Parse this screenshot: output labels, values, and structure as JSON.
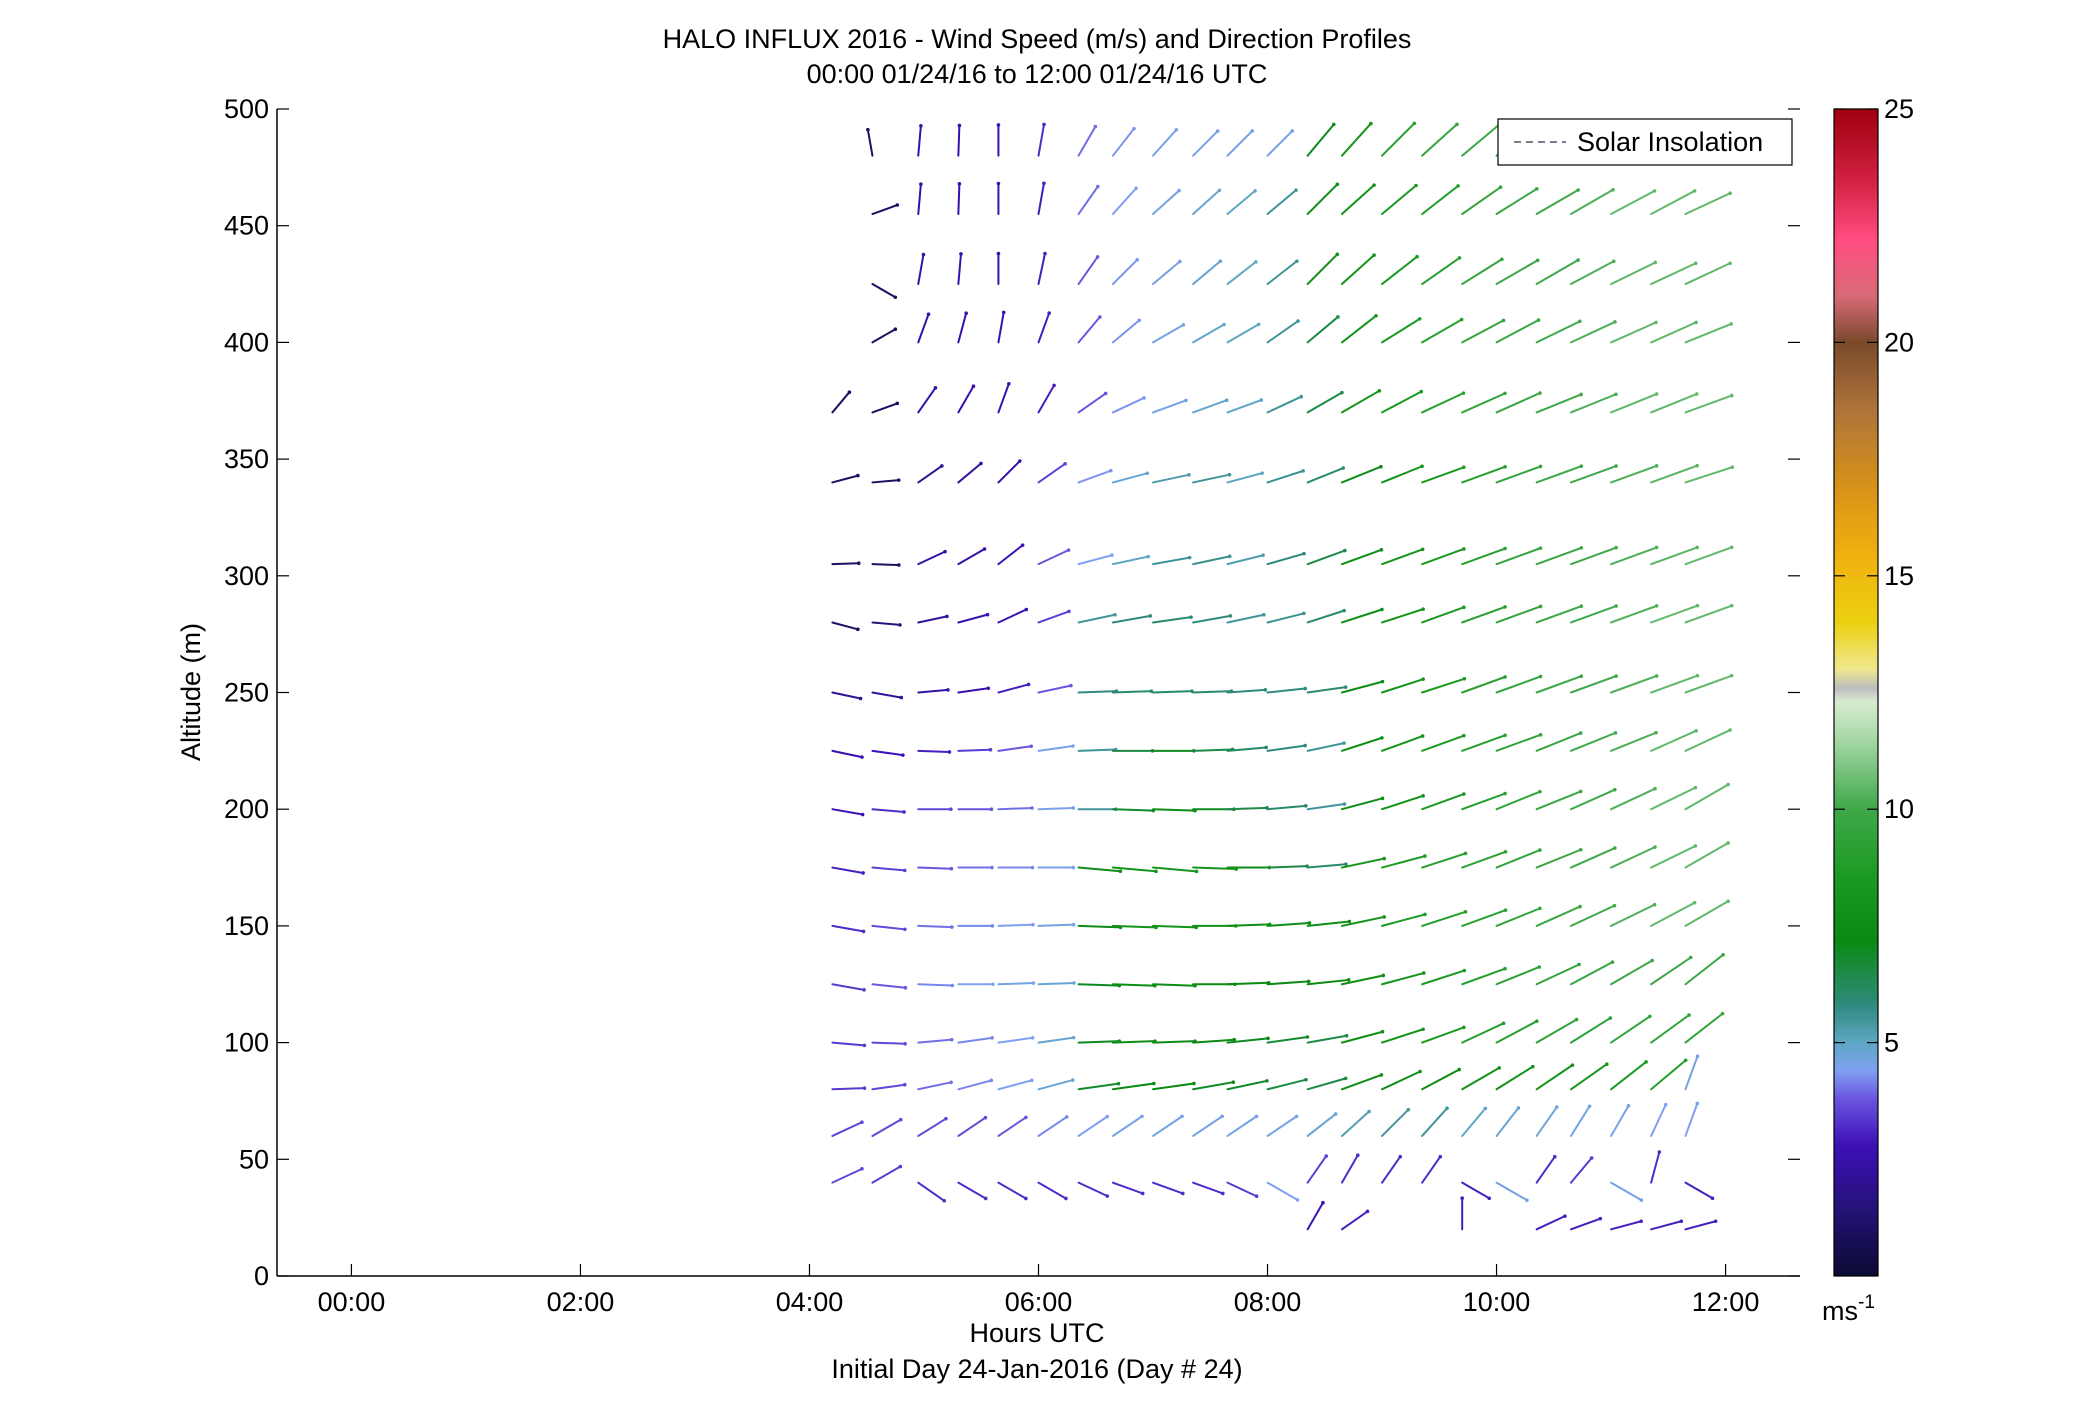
{
  "chart_data": {
    "type": "wind-barb-profile",
    "title": "HALO INFLUX 2016 - Wind Speed (m/s) and Direction Profiles",
    "subtitle": "00:00 01/24/16 to 12:00 01/24/16  UTC",
    "xlabel": "Hours UTC",
    "xlabel2": "Initial Day 24-Jan-2016 (Day # 24)",
    "ylabel": "Altitude (m)",
    "xlim": [
      -0.65,
      12.65
    ],
    "ylim": [
      0,
      500
    ],
    "x_ticks": [
      0,
      2,
      4,
      6,
      8,
      10,
      12
    ],
    "x_tick_labels": [
      "00:00",
      "02:00",
      "04:00",
      "06:00",
      "08:00",
      "10:00",
      "12:00"
    ],
    "y_ticks": [
      0,
      50,
      100,
      150,
      200,
      250,
      300,
      350,
      400,
      450,
      500
    ],
    "legend": {
      "label": "Solar Insolation",
      "placement": "top-right"
    },
    "colorbar": {
      "range": [
        0,
        25
      ],
      "ticks": [
        5,
        10,
        15,
        20,
        25
      ],
      "unit_label": "ms",
      "unit_exponent": "-1",
      "colors": [
        {
          "v": 0,
          "c": "#0a0a33"
        },
        {
          "v": 1.5,
          "c": "#26127a"
        },
        {
          "v": 2.8,
          "c": "#3d10b8"
        },
        {
          "v": 3.8,
          "c": "#6b55e0"
        },
        {
          "v": 4.4,
          "c": "#7fa0f2"
        },
        {
          "v": 5.0,
          "c": "#5ea7c4"
        },
        {
          "v": 5.8,
          "c": "#2f8a7e"
        },
        {
          "v": 7.2,
          "c": "#0a8a10"
        },
        {
          "v": 8.5,
          "c": "#1a9a20"
        },
        {
          "v": 10.0,
          "c": "#3fa84a"
        },
        {
          "v": 11.5,
          "c": "#a6d8a6"
        },
        {
          "v": 12.3,
          "c": "#d8ebd0"
        },
        {
          "v": 12.6,
          "c": "#bdbdbd"
        },
        {
          "v": 13.0,
          "c": "#f0e890"
        },
        {
          "v": 14.0,
          "c": "#ecd010"
        },
        {
          "v": 15.5,
          "c": "#f0b010"
        },
        {
          "v": 17.0,
          "c": "#d4901a"
        },
        {
          "v": 18.5,
          "c": "#b0753a"
        },
        {
          "v": 20.0,
          "c": "#7a4a2c"
        },
        {
          "v": 21.0,
          "c": "#d86a78"
        },
        {
          "v": 22.2,
          "c": "#ff4d80"
        },
        {
          "v": 23.5,
          "c": "#d02040"
        },
        {
          "v": 25.0,
          "c": "#a00010"
        }
      ]
    },
    "times": [
      4.2,
      4.55,
      4.95,
      5.3,
      5.65,
      6.0,
      6.35,
      6.65,
      7.0,
      7.35,
      7.65,
      8.0,
      8.35,
      8.65,
      9.0,
      9.35,
      9.7,
      10.0,
      10.35,
      10.65,
      11.0,
      11.35,
      11.65
    ],
    "altitudes": [
      20,
      40,
      60,
      80,
      100,
      125,
      150,
      175,
      200,
      225,
      250,
      280,
      305,
      340,
      370,
      400,
      425,
      455,
      480
    ],
    "profiles": [
      {
        "alt": 480,
        "t0": 4.55,
        "spd": [
          1.0,
          2.5,
          2.6,
          2.8,
          3.2,
          4.0,
          4.3,
          4.5,
          4.5,
          4.6,
          4.6,
          7.0,
          8.0,
          9.0,
          9.5,
          10.0,
          10.0
        ],
        "dir": [
          170,
          185,
          182,
          180,
          190,
          210,
          218,
          222,
          225,
          225,
          225,
          220,
          222,
          225,
          228,
          230,
          232
        ]
      },
      {
        "alt": 455,
        "t0": 4.55,
        "spd": [
          1.0,
          2.5,
          2.6,
          2.7,
          3.0,
          4.0,
          4.4,
          4.6,
          4.8,
          5.0,
          5.5,
          7.5,
          8.0,
          8.5,
          9.0,
          9.5,
          9.8,
          10.0,
          10.2,
          10.5,
          10.5,
          10.5
        ],
        "dir": [
          250,
          185,
          182,
          180,
          190,
          215,
          222,
          228,
          228,
          230,
          230,
          225,
          228,
          230,
          232,
          235,
          238,
          240,
          240,
          242,
          242,
          245
        ]
      },
      {
        "alt": 425,
        "t0": 4.55,
        "spd": [
          1.0,
          2.5,
          2.6,
          2.7,
          3.0,
          3.8,
          4.3,
          4.6,
          4.8,
          5.0,
          5.5,
          7.5,
          8.0,
          8.5,
          9.0,
          9.5,
          9.8,
          10.0,
          10.2,
          10.5,
          10.5,
          10.5
        ],
        "dir": [
          300,
          190,
          185,
          180,
          192,
          215,
          225,
          230,
          230,
          232,
          232,
          225,
          228,
          232,
          235,
          238,
          240,
          240,
          242,
          244,
          245,
          245
        ]
      },
      {
        "alt": 400,
        "t0": 4.55,
        "spd": [
          1.0,
          2.5,
          2.6,
          2.7,
          3.0,
          3.8,
          4.3,
          4.6,
          4.9,
          5.0,
          5.5,
          6.5,
          8.0,
          8.5,
          9.0,
          9.5,
          9.8,
          10.0,
          10.2,
          10.5,
          10.5,
          10.5
        ],
        "dir": [
          240,
          200,
          195,
          190,
          200,
          220,
          230,
          240,
          240,
          240,
          235,
          230,
          232,
          238,
          240,
          242,
          242,
          244,
          245,
          246,
          246,
          248
        ]
      },
      {
        "alt": 370,
        "t0": 4.2,
        "spd": [
          1.0,
          1.0,
          2.5,
          2.6,
          2.7,
          3.0,
          3.8,
          4.3,
          4.6,
          4.9,
          5.0,
          5.5,
          6.5,
          8.0,
          8.5,
          9.0,
          9.5,
          9.8,
          10.0,
          10.2,
          10.5,
          10.5,
          10.5
        ],
        "dir": [
          220,
          250,
          215,
          210,
          200,
          210,
          235,
          245,
          250,
          250,
          250,
          245,
          240,
          240,
          242,
          245,
          246,
          246,
          248,
          248,
          248,
          248,
          250
        ]
      },
      {
        "alt": 340,
        "t0": 4.2,
        "spd": [
          1.0,
          1.0,
          2.0,
          2.3,
          2.6,
          3.5,
          4.3,
          4.8,
          5.3,
          5.5,
          5.0,
          5.6,
          6.0,
          7.5,
          8.0,
          8.5,
          9.0,
          9.5,
          9.8,
          10.0,
          10.2,
          10.4,
          10.5
        ],
        "dir": [
          255,
          265,
          235,
          230,
          225,
          235,
          250,
          255,
          258,
          258,
          255,
          252,
          248,
          248,
          248,
          250,
          250,
          250,
          250,
          250,
          250,
          250,
          252
        ]
      },
      {
        "alt": 305,
        "t0": 4.2,
        "spd": [
          1.0,
          1.0,
          2.3,
          2.6,
          2.8,
          3.8,
          4.4,
          5.0,
          5.5,
          5.6,
          5.3,
          5.8,
          6.5,
          7.5,
          8.0,
          8.5,
          9.0,
          9.5,
          9.8,
          10.0,
          10.2,
          10.4,
          10.5
        ],
        "dir": [
          268,
          272,
          245,
          240,
          232,
          245,
          255,
          258,
          260,
          258,
          256,
          254,
          250,
          250,
          250,
          250,
          250,
          250,
          250,
          250,
          250,
          250,
          250
        ]
      },
      {
        "alt": 280,
        "t0": 4.2,
        "spd": [
          1.0,
          1.5,
          2.2,
          2.6,
          2.8,
          3.5,
          5.5,
          5.8,
          6.0,
          5.8,
          5.5,
          5.6,
          6.0,
          7.5,
          8.0,
          8.5,
          9.0,
          9.5,
          9.8,
          10.0,
          10.2,
          10.5,
          10.5
        ],
        "dir": [
          285,
          275,
          258,
          255,
          245,
          250,
          258,
          260,
          262,
          260,
          258,
          256,
          252,
          252,
          252,
          250,
          250,
          250,
          250,
          250,
          250,
          250,
          250
        ]
      },
      {
        "alt": 250,
        "t0": 4.2,
        "spd": [
          2.0,
          2.2,
          2.4,
          2.6,
          3.0,
          3.8,
          5.8,
          6.0,
          6.2,
          6.0,
          5.8,
          5.8,
          6.0,
          7.5,
          8.0,
          8.5,
          9.0,
          9.5,
          9.8,
          10.0,
          10.2,
          10.5,
          10.5
        ],
        "dir": [
          282,
          280,
          265,
          262,
          255,
          258,
          268,
          268,
          268,
          268,
          266,
          264,
          262,
          255,
          252,
          252,
          250,
          250,
          250,
          250,
          250,
          250,
          250
        ]
      },
      {
        "alt": 225,
        "t0": 4.2,
        "spd": [
          2.6,
          2.8,
          3.0,
          3.4,
          3.8,
          4.5,
          5.5,
          6.5,
          7.0,
          6.5,
          6.2,
          5.8,
          5.5,
          7.5,
          8.0,
          8.5,
          9.0,
          9.5,
          9.8,
          10.0,
          10.2,
          10.5,
          10.5
        ],
        "dir": [
          282,
          278,
          272,
          268,
          262,
          262,
          268,
          270,
          270,
          268,
          265,
          262,
          258,
          252,
          250,
          250,
          250,
          250,
          248,
          248,
          248,
          246,
          245
        ]
      },
      {
        "alt": 200,
        "t0": 4.2,
        "spd": [
          2.8,
          3.2,
          3.6,
          3.8,
          4.0,
          4.5,
          5.5,
          6.8,
          7.5,
          7.0,
          6.5,
          6.0,
          5.5,
          7.5,
          8.0,
          8.5,
          9.0,
          9.5,
          9.8,
          10.0,
          10.2,
          10.5,
          10.5
        ],
        "dir": [
          280,
          275,
          270,
          270,
          268,
          268,
          270,
          272,
          272,
          270,
          268,
          265,
          262,
          255,
          252,
          250,
          250,
          248,
          248,
          246,
          245,
          244,
          240
        ]
      },
      {
        "alt": 175,
        "t0": 4.2,
        "spd": [
          3.0,
          3.5,
          3.8,
          4.0,
          4.2,
          4.5,
          7.5,
          8.0,
          8.2,
          8.0,
          7.5,
          6.5,
          6.0,
          8.0,
          8.5,
          9.0,
          9.2,
          9.5,
          9.8,
          10.0,
          10.2,
          10.5,
          10.5
        ],
        "dir": [
          280,
          275,
          272,
          270,
          270,
          270,
          275,
          275,
          275,
          272,
          270,
          268,
          265,
          258,
          255,
          252,
          250,
          248,
          248,
          246,
          245,
          244,
          240
        ]
      },
      {
        "alt": 150,
        "t0": 4.2,
        "spd": [
          3.2,
          3.6,
          4.0,
          4.2,
          4.4,
          4.6,
          7.5,
          8.0,
          8.0,
          7.8,
          7.6,
          7.5,
          7.5,
          8.0,
          8.5,
          9.0,
          9.2,
          9.5,
          9.8,
          10.0,
          10.2,
          10.5,
          10.5
        ],
        "dir": [
          280,
          276,
          272,
          270,
          268,
          268,
          272,
          272,
          272,
          270,
          268,
          266,
          264,
          258,
          255,
          252,
          250,
          248,
          246,
          245,
          244,
          242,
          240
        ]
      },
      {
        "alt": 125,
        "t0": 4.2,
        "spd": [
          3.4,
          3.8,
          4.2,
          4.4,
          4.6,
          4.8,
          7.0,
          7.5,
          7.5,
          7.4,
          7.2,
          7.2,
          7.2,
          7.6,
          8.0,
          8.5,
          9.0,
          9.2,
          9.5,
          9.6,
          9.8,
          9.9,
          9.9
        ],
        "dir": [
          280,
          276,
          272,
          270,
          268,
          268,
          272,
          272,
          272,
          270,
          268,
          266,
          264,
          258,
          255,
          252,
          250,
          248,
          245,
          242,
          240,
          236,
          232
        ]
      },
      {
        "alt": 100,
        "t0": 4.2,
        "spd": [
          3.4,
          3.6,
          4.0,
          4.2,
          4.4,
          4.8,
          7.0,
          7.5,
          7.5,
          7.2,
          7.0,
          6.8,
          6.5,
          7.5,
          8.0,
          8.5,
          9.0,
          9.0,
          9.2,
          9.3,
          9.5,
          9.5,
          9.6
        ],
        "dir": [
          275,
          272,
          265,
          262,
          262,
          262,
          268,
          268,
          268,
          266,
          264,
          262,
          260,
          255,
          252,
          250,
          245,
          242,
          240,
          238,
          236,
          234,
          232
        ]
      },
      {
        "alt": 80,
        "t0": 4.2,
        "spd": [
          3.4,
          3.6,
          4.0,
          4.2,
          4.4,
          4.8,
          6.8,
          7.2,
          7.2,
          7.0,
          6.8,
          6.5,
          6.5,
          7.5,
          7.5,
          7.5,
          7.8,
          7.8,
          8.0,
          8.2,
          8.5,
          8.8,
          4.6
        ],
        "dir": [
          268,
          262,
          258,
          255,
          255,
          255,
          262,
          262,
          262,
          260,
          258,
          256,
          254,
          250,
          245,
          242,
          240,
          238,
          236,
          235,
          232,
          230,
          200
        ]
      },
      {
        "alt": 60,
        "t0": 4.2,
        "spd": [
          3.6,
          3.6,
          3.6,
          3.6,
          3.8,
          4.2,
          4.4,
          4.6,
          4.6,
          4.6,
          4.6,
          4.6,
          4.8,
          5.2,
          5.5,
          5.5,
          5.0,
          4.8,
          4.7,
          4.6,
          4.5,
          4.4,
          4.4
        ],
        "dir": [
          245,
          240,
          238,
          236,
          236,
          236,
          236,
          236,
          236,
          236,
          236,
          236,
          232,
          228,
          225,
          222,
          220,
          218,
          215,
          212,
          210,
          205,
          200
        ]
      },
      {
        "alt": 40,
        "t0": 4.2,
        "spd": [
          3.6,
          3.4,
          3.2,
          3.2,
          3.2,
          3.2,
          3.2,
          3.2,
          3.2,
          3.2,
          3.4,
          4.4,
          3.5,
          3.2,
          3.2,
          3.2,
          3.0,
          4.6,
          3.2,
          3.4,
          4.6,
          3.2,
          3.0
        ],
        "dir": [
          245,
          240,
          305,
          300,
          300,
          300,
          295,
          290,
          290,
          290,
          295,
          300,
          215,
          210,
          215,
          215,
          300,
          300,
          215,
          220,
          300,
          195,
          300
        ]
      },
      {
        "alt": 20,
        "t0": 8.35,
        "spd": [
          2.8,
          3.0,
          0,
          0,
          3.0,
          0,
          3.0,
          3.0,
          3.0,
          3.0,
          3.0
        ],
        "dir": [
          210,
          235,
          0,
          0,
          180,
          0,
          245,
          250,
          255,
          255,
          255
        ]
      }
    ]
  }
}
